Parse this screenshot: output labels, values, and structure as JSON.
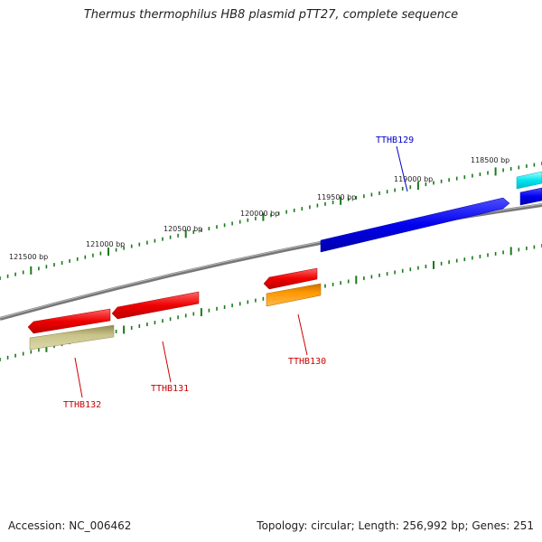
{
  "title": "Thermus thermophilus HB8 plasmid pTT27, complete sequence",
  "footer": {
    "accession": "Accession: NC_006462",
    "summary": "Topology: circular; Length: 256,992 bp; Genes: 251"
  },
  "scale_labels": [
    "121500 bp",
    "121000 bp",
    "120500 bp",
    "120000 bp",
    "119500 bp",
    "119000 bp",
    "118500 bp"
  ],
  "genes": [
    {
      "name": "TTHB129",
      "color": "#0000cc"
    },
    {
      "name": "TTHB130",
      "color": "#cc0000"
    },
    {
      "name": "TTHB131",
      "color": "#cc0000"
    },
    {
      "name": "TTHB132",
      "color": "#cc0000"
    }
  ],
  "colors": {
    "backbone": "#8c8c8c",
    "tick": "#1a7a1a",
    "forward_gene": "#0000ee",
    "reverse_gene": "#ee0000",
    "cyan_feature": "#00e5ee",
    "orange_feature": "#ff8c00",
    "olive_feature": "#bdb76b"
  }
}
